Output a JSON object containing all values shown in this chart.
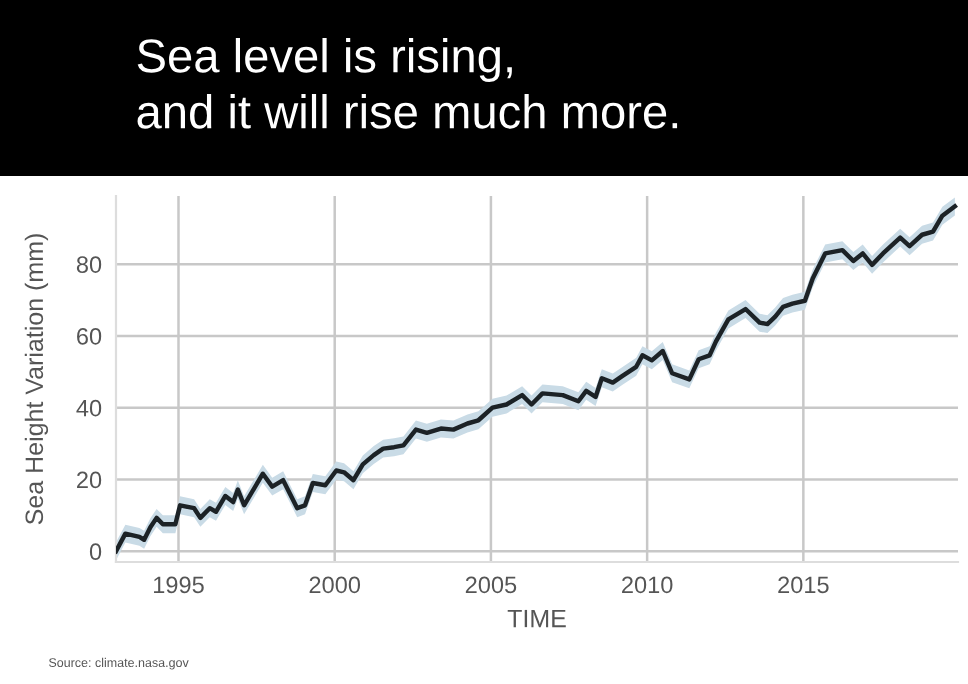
{
  "chart_data": {
    "type": "line",
    "title": "Sea level is rising,\nand it will rise much more.",
    "xlabel": "TIME",
    "ylabel": "Sea Height Variation (mm)",
    "annotations": [
      "Source: climate.nasa.gov"
    ],
    "series": [
      {
        "color": "#1c2226",
        "x": [
          1993.0,
          1993.3,
          1993.75,
          1993.9,
          1994.1,
          1994.3,
          1994.5,
          1994.9,
          1995.05,
          1995.5,
          1995.7,
          1996.0,
          1996.2,
          1996.5,
          1996.75,
          1996.9,
          1997.1,
          1997.7,
          1998.0,
          1998.35,
          1998.8,
          1999.05,
          1999.3,
          1999.7,
          2000.05,
          2000.3,
          2000.6,
          2000.9,
          2001.25,
          2001.55,
          2001.9,
          2002.2,
          2002.6,
          2002.95,
          2003.4,
          2003.8,
          2004.25,
          2004.6,
          2005.05,
          2005.5,
          2006.0,
          2006.3,
          2006.65,
          2007.3,
          2007.8,
          2008.05,
          2008.35,
          2008.55,
          2008.9,
          2009.2,
          2009.65,
          2009.85,
          2010.15,
          2010.5,
          2010.8,
          2011.35,
          2011.65,
          2012.0,
          2012.2,
          2012.6,
          2013.15,
          2013.6,
          2013.85,
          2014.1,
          2014.35,
          2014.65,
          2015.05,
          2015.3,
          2015.7,
          2016.25,
          2016.6,
          2016.9,
          2017.2,
          2017.55,
          2018.1,
          2018.4,
          2018.8,
          2019.15,
          2019.45,
          2019.85
        ],
        "values": [
          0,
          4.9,
          4,
          3.2,
          6.7,
          9.3,
          7.5,
          7.5,
          12.8,
          12,
          9.3,
          12,
          11,
          15.4,
          13.7,
          17.2,
          12.8,
          21.6,
          18,
          19.8,
          12,
          12.8,
          19,
          18.4,
          22.5,
          22,
          19.8,
          24.2,
          26.8,
          28.6,
          29,
          29.5,
          33.9,
          33,
          34.2,
          33.9,
          35.6,
          36.5,
          40,
          40.9,
          43.5,
          40.9,
          44,
          43.5,
          41.8,
          44.7,
          43,
          48.2,
          47,
          48.8,
          51.4,
          54.6,
          53.2,
          55.8,
          49.6,
          47.9,
          53.5,
          54.6,
          58.4,
          64.6,
          67.5,
          63.7,
          63.3,
          65.4,
          68.1,
          69,
          69.8,
          76,
          83,
          83.9,
          80.9,
          83,
          79.8,
          83,
          87.4,
          85,
          88.2,
          89.1,
          93.5,
          96.1
        ],
        "lower": [
          -2.5,
          2.4,
          1.5,
          0.7,
          4.2,
          6.8,
          5,
          5,
          10.3,
          9.5,
          6.8,
          9.5,
          8.5,
          12.9,
          11.2,
          14.7,
          10.3,
          19.1,
          15.5,
          17.3,
          9.5,
          10.3,
          16.5,
          15.9,
          20,
          19.5,
          17.3,
          21.7,
          24.3,
          26.1,
          26.5,
          27,
          31.4,
          30.5,
          31.7,
          31.4,
          33.1,
          34,
          37.5,
          38.4,
          41,
          38.4,
          41.5,
          41,
          39.3,
          42.2,
          40.5,
          45.7,
          44.5,
          46.3,
          48.9,
          52.1,
          50.7,
          53.3,
          47.1,
          45.4,
          51,
          52.1,
          55.9,
          62.1,
          65,
          61.2,
          60.8,
          62.9,
          65.6,
          66.5,
          67.3,
          73.5,
          80.5,
          81.4,
          78.4,
          80.5,
          77.3,
          80.5,
          84.9,
          82.5,
          85.7,
          86.6,
          91,
          93.6
        ],
        "upper": [
          2.5,
          7.4,
          6.5,
          5.7,
          9.2,
          11.8,
          10,
          10,
          15.3,
          14.5,
          11.8,
          14.5,
          13.5,
          17.9,
          16.2,
          19.7,
          15.3,
          24.1,
          20.5,
          22.3,
          14.5,
          15.3,
          21.5,
          20.9,
          25,
          24.5,
          22.3,
          26.7,
          29.3,
          31.1,
          31.5,
          32,
          36.4,
          35.5,
          36.7,
          36.4,
          38.1,
          39,
          42.5,
          43.4,
          46,
          43.4,
          46.5,
          46,
          44.3,
          47.2,
          45.5,
          50.7,
          49.5,
          51.3,
          53.9,
          57.1,
          55.7,
          58.3,
          52.1,
          50.4,
          56,
          57.1,
          60.9,
          67.1,
          70,
          66.2,
          65.8,
          67.9,
          70.6,
          71.5,
          72.3,
          78.5,
          85.5,
          86.4,
          83.4,
          85.5,
          82.3,
          85.5,
          89.9,
          87.5,
          90.7,
          91.6,
          96,
          98.6
        ]
      }
    ],
    "xlim": [
      1993.0,
      2019.95
    ],
    "ylim": [
      -3,
      99
    ],
    "xticks": [
      1995,
      2000,
      2005,
      2010,
      2015
    ],
    "yticks": [
      0,
      20,
      40,
      60,
      80
    ],
    "grid": true,
    "line_style": "solid",
    "marker": "none"
  }
}
